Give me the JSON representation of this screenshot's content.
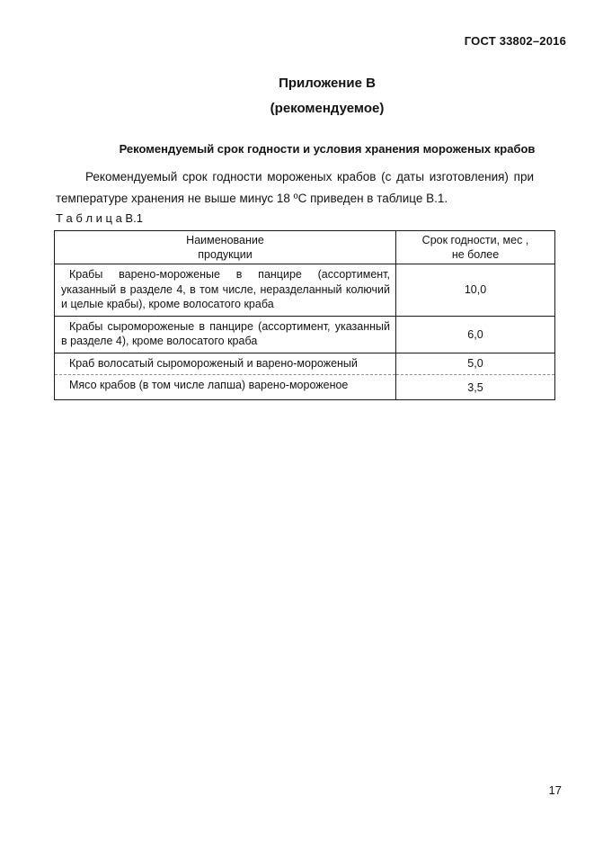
{
  "page": {
    "doc_number": "ГОСТ 33802–2016",
    "appendix_title": "Приложение В",
    "appendix_subtitle": "(рекомендуемое)",
    "section_heading": "Рекомендуемый срок годности и условия хранения мороженых крабов",
    "paragraph": "Рекомендуемый срок годности  мороженых крабов (с даты изготовления) при температуре хранения не выше минус 18 ºС приведен в таблице В.1.",
    "table_label": "Т а б л и ц а В.1",
    "page_number": "17"
  },
  "table": {
    "col_product": "Наименование\nпродукции",
    "col_term": "Срок годности, мес ,\nне более",
    "rows": [
      {
        "name": "Крабы варено-мороженые в панцире (ассортимент, указанный в разделе 4, в том числе, неразделанный колючий и  целые крабы), кроме волосатого краба",
        "value": "10,0"
      },
      {
        "name": "Крабы сыромороженые в панцире (ассортимент, указанный в разделе 4), кроме волосатого краба",
        "value": "6,0"
      },
      {
        "name": "Краб волосатый сыромороженый и варено-мороженый",
        "value": "5,0"
      },
      {
        "name": "Мясо крабов (в том числе лапша) варено-мороженое",
        "value": "3,5"
      }
    ]
  }
}
